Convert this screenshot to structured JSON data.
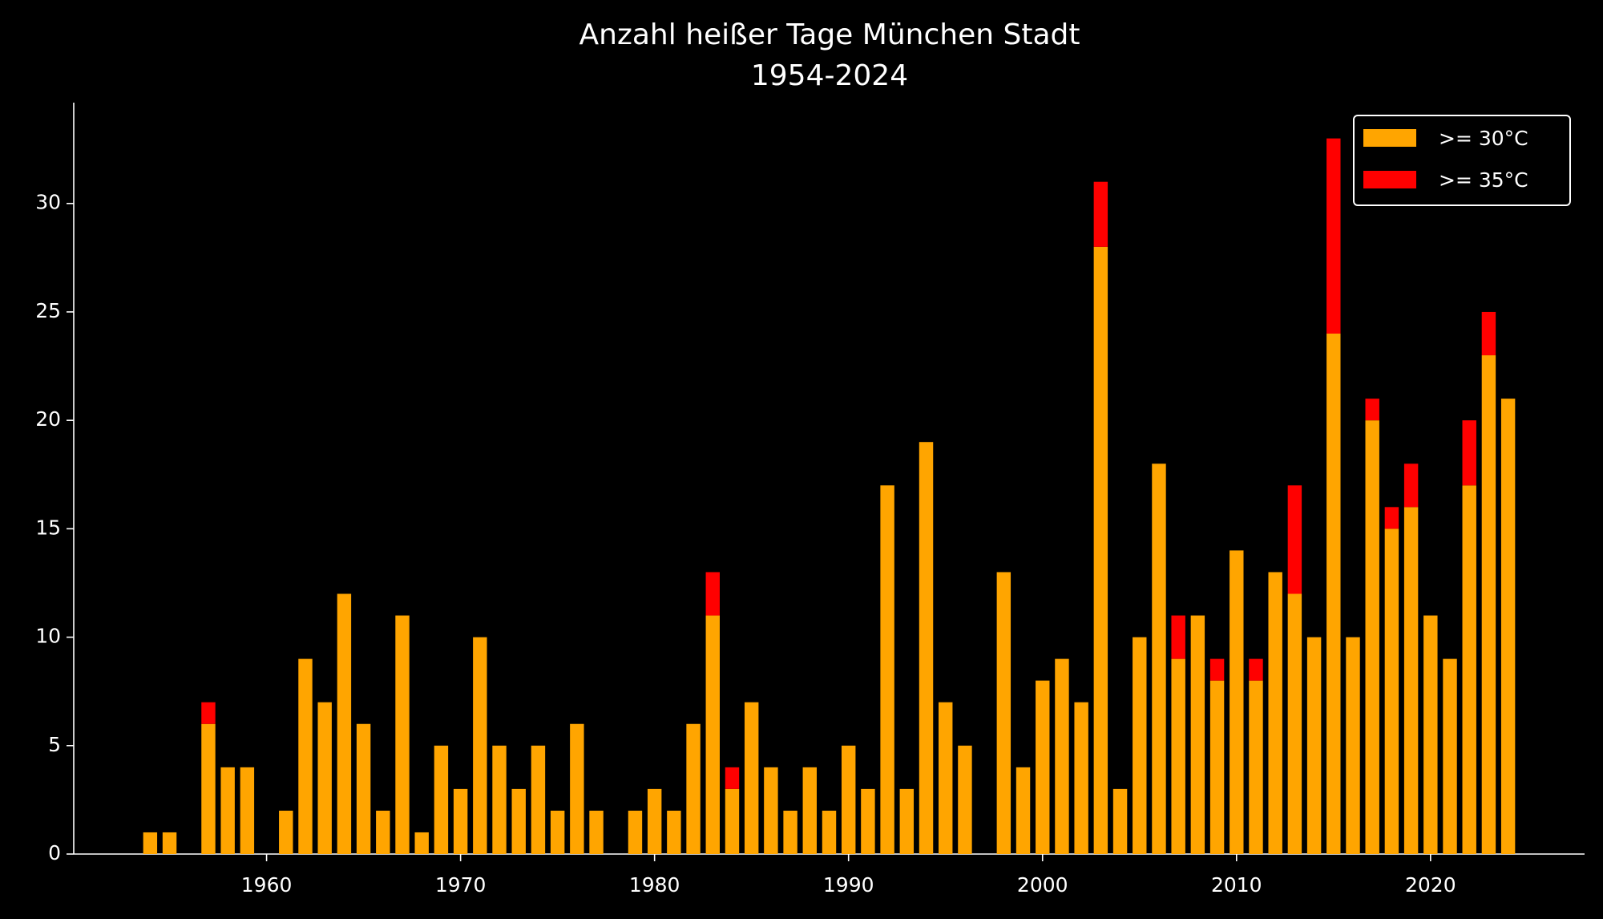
{
  "chart_data": {
    "type": "stacked-bar",
    "title": "Anzahl heißer Tage München Stadt",
    "subtitle": "1954-2024",
    "x": [
      1954,
      1955,
      1956,
      1957,
      1958,
      1959,
      1960,
      1961,
      1962,
      1963,
      1964,
      1965,
      1966,
      1967,
      1968,
      1969,
      1970,
      1971,
      1972,
      1973,
      1974,
      1975,
      1976,
      1977,
      1978,
      1979,
      1980,
      1981,
      1982,
      1983,
      1984,
      1985,
      1986,
      1987,
      1988,
      1989,
      1990,
      1991,
      1992,
      1993,
      1994,
      1995,
      1996,
      1997,
      1998,
      1999,
      2000,
      2001,
      2002,
      2003,
      2004,
      2005,
      2006,
      2007,
      2008,
      2009,
      2010,
      2011,
      2012,
      2013,
      2014,
      2015,
      2016,
      2017,
      2018,
      2019,
      2020,
      2021,
      2022,
      2023,
      2024
    ],
    "series": [
      {
        "name": ">= 30°C",
        "color": "#ffa500",
        "values": [
          1,
          1,
          0,
          6,
          4,
          4,
          0,
          2,
          9,
          7,
          12,
          6,
          2,
          11,
          1,
          5,
          3,
          10,
          5,
          3,
          5,
          2,
          6,
          2,
          0,
          2,
          3,
          2,
          6,
          11,
          3,
          7,
          4,
          2,
          4,
          2,
          5,
          3,
          17,
          3,
          19,
          7,
          5,
          0,
          13,
          4,
          8,
          9,
          7,
          28,
          3,
          10,
          18,
          9,
          11,
          8,
          14,
          8,
          13,
          12,
          10,
          24,
          10,
          20,
          15,
          16,
          11,
          9,
          17,
          23,
          21
        ]
      },
      {
        "name": ">= 35°C",
        "color": "#ff0000",
        "values": [
          0,
          0,
          0,
          1,
          0,
          0,
          0,
          0,
          0,
          0,
          0,
          0,
          0,
          0,
          0,
          0,
          0,
          0,
          0,
          0,
          0,
          0,
          0,
          0,
          0,
          0,
          0,
          0,
          0,
          2,
          1,
          0,
          0,
          0,
          0,
          0,
          0,
          0,
          0,
          0,
          0,
          0,
          0,
          0,
          0,
          0,
          0,
          0,
          0,
          3,
          0,
          0,
          0,
          2,
          0,
          1,
          0,
          1,
          0,
          5,
          0,
          9,
          0,
          1,
          1,
          2,
          0,
          0,
          3,
          2,
          0
        ]
      }
    ],
    "xlim": [
      1950.06,
      2027.94
    ],
    "xticks": [
      1960,
      1970,
      1980,
      1990,
      2000,
      2010,
      2020
    ],
    "ylim": [
      0,
      34.65
    ],
    "yticks": [
      0,
      5,
      10,
      15,
      20,
      25,
      30
    ],
    "legend": "upper right"
  }
}
